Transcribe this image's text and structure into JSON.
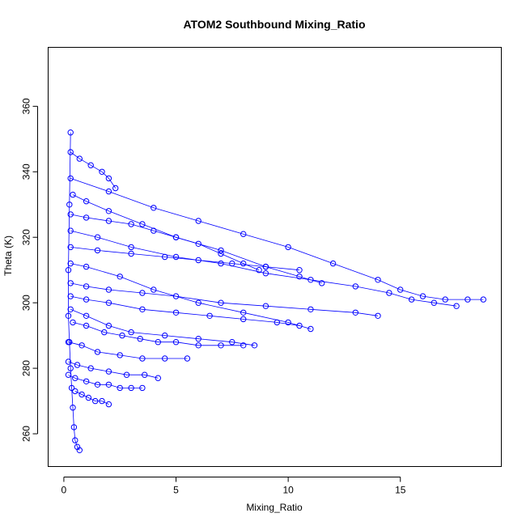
{
  "chart_data": {
    "type": "scatter",
    "title": "ATOM2 Southbound Mixing_Ratio",
    "xlabel": "Mixing_Ratio",
    "ylabel": "Theta (K)",
    "xlim": [
      -0.7,
      19.5
    ],
    "ylim": [
      250,
      378
    ],
    "xticks": [
      0,
      5,
      10,
      15
    ],
    "yticks": [
      260,
      280,
      300,
      320,
      340,
      360
    ],
    "grid": false,
    "legend": "none",
    "color": "#0000ff",
    "marker": "open-circle",
    "connected": true,
    "series": [
      {
        "x": [
          0.7,
          0.6,
          0.5,
          0.45,
          0.4,
          0.35,
          0.3,
          0.25,
          0.2,
          0.2,
          0.25,
          0.3
        ],
        "y": [
          255,
          256,
          258,
          262,
          268,
          274,
          280,
          288,
          296,
          310,
          330,
          352
        ]
      },
      {
        "x": [
          0.3,
          2.0,
          4.0,
          6.0,
          8.0,
          10.0,
          12.0,
          14.0,
          15.0,
          16.0,
          17.0,
          18.0,
          18.7
        ],
        "y": [
          338,
          334,
          329,
          325,
          321,
          317,
          312,
          307,
          304,
          302,
          301,
          301,
          301
        ]
      },
      {
        "x": [
          0.3,
          1.5,
          3.0,
          5.0,
          7.0,
          9.0,
          11.0,
          13.0,
          14.5,
          15.5,
          16.5,
          17.5
        ],
        "y": [
          322,
          320,
          317,
          314,
          312,
          309,
          307,
          305,
          303,
          301,
          300,
          299
        ]
      },
      {
        "x": [
          0.4,
          1.0,
          2.0,
          3.5,
          5.0,
          7.0,
          9.0,
          10.5,
          11.5
        ],
        "y": [
          333,
          331,
          328,
          324,
          320,
          316,
          311,
          308,
          306
        ]
      },
      {
        "x": [
          0.3,
          1.0,
          2.5,
          4.0,
          6.0,
          8.0,
          10.0,
          11.0
        ],
        "y": [
          312,
          311,
          308,
          304,
          300,
          297,
          294,
          292
        ]
      },
      {
        "x": [
          0.3,
          1.0,
          2.0,
          3.5,
          5.0,
          7.0,
          9.0,
          11.0,
          13.0,
          14.0
        ],
        "y": [
          306,
          305,
          304,
          303,
          302,
          300,
          299,
          298,
          297,
          296
        ]
      },
      {
        "x": [
          0.3,
          1.0,
          2.0,
          3.0,
          4.5,
          6.0,
          7.5,
          8.5
        ],
        "y": [
          298,
          296,
          293,
          291,
          290,
          289,
          288,
          287
        ]
      },
      {
        "x": [
          0.2,
          0.8,
          1.5,
          2.5,
          3.5,
          4.5,
          5.5
        ],
        "y": [
          288,
          287,
          285,
          284,
          283,
          283,
          283
        ]
      },
      {
        "x": [
          0.2,
          0.6,
          1.2,
          2.0,
          2.8,
          3.6,
          4.2
        ],
        "y": [
          282,
          281,
          280,
          279,
          278,
          278,
          277
        ]
      },
      {
        "x": [
          0.2,
          0.5,
          1.0,
          1.5,
          2.0,
          2.5,
          3.0,
          3.5
        ],
        "y": [
          278,
          277,
          276,
          275,
          275,
          274,
          274,
          274
        ]
      },
      {
        "x": [
          0.3,
          0.7,
          1.2,
          1.7,
          2.0,
          2.3
        ],
        "y": [
          346,
          344,
          342,
          340,
          338,
          335
        ]
      },
      {
        "x": [
          0.3,
          1.0,
          2.0,
          3.0,
          4.0,
          5.0,
          6.0,
          7.0,
          8.0,
          8.7
        ],
        "y": [
          327,
          326,
          325,
          324,
          322,
          320,
          318,
          315,
          312,
          310
        ]
      },
      {
        "x": [
          0.3,
          1.5,
          3.0,
          4.5,
          6.0,
          7.5,
          9.0,
          10.5
        ],
        "y": [
          317,
          316,
          315,
          314,
          313,
          312,
          311,
          310
        ]
      },
      {
        "x": [
          0.3,
          1.0,
          2.0,
          3.5,
          5.0,
          6.5,
          8.0,
          9.5,
          10.5
        ],
        "y": [
          302,
          301,
          300,
          298,
          297,
          296,
          295,
          294,
          293
        ]
      },
      {
        "x": [
          0.4,
          1.0,
          1.8,
          2.6,
          3.4,
          4.2,
          5.0,
          6.0,
          7.0,
          8.0
        ],
        "y": [
          294,
          293,
          291,
          290,
          289,
          288,
          288,
          287,
          287,
          287
        ]
      },
      {
        "x": [
          0.5,
          0.8,
          1.1,
          1.4,
          1.7,
          2.0
        ],
        "y": [
          273,
          272,
          271,
          270,
          270,
          269
        ]
      }
    ]
  }
}
